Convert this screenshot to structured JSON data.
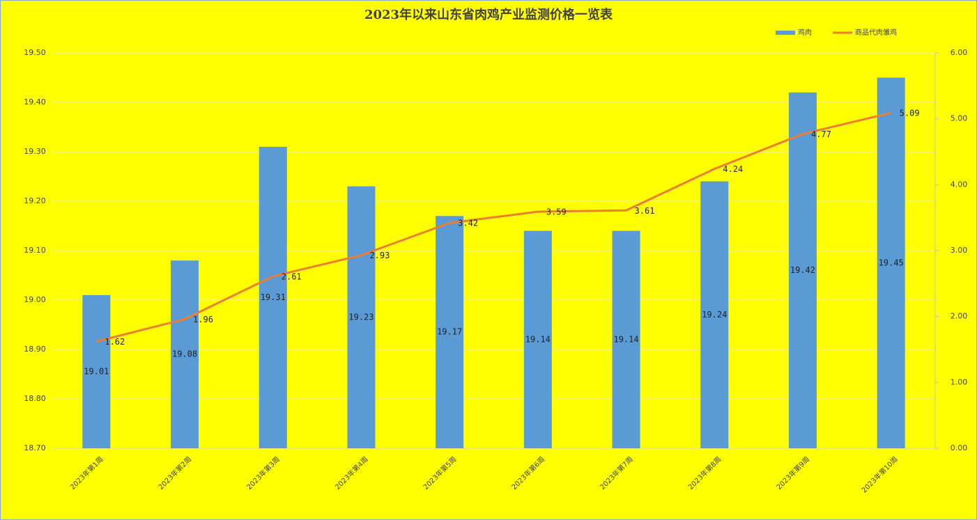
{
  "chart_data": {
    "type": "combo",
    "title": "2023年以来山东省肉鸡产业监测价格一览表",
    "categories": [
      "2023年第1周",
      "2023年第2周",
      "2023年第3周",
      "2023年第4周",
      "2023年第5周",
      "2023年第6周",
      "2023年第7周",
      "2023年第8周",
      "2023年第9周",
      "2023年第10周"
    ],
    "series": [
      {
        "name": "鸡肉",
        "type": "bar",
        "color": "#5b9bd5",
        "values": [
          19.01,
          19.08,
          19.31,
          19.23,
          19.17,
          19.14,
          19.14,
          19.24,
          19.42,
          19.45
        ]
      },
      {
        "name": "商品代肉雏鸡",
        "type": "line",
        "axis": "y2",
        "color": "#ed7d31",
        "values": [
          1.62,
          1.96,
          2.61,
          2.93,
          3.42,
          3.59,
          3.61,
          4.24,
          4.77,
          5.09
        ]
      }
    ],
    "ylim": [
      18.7,
      19.5
    ],
    "yticks": [
      {
        "value": 18.7,
        "label": "18.70"
      },
      {
        "value": 18.8,
        "label": "18.80"
      },
      {
        "value": 18.9,
        "label": "18.90"
      },
      {
        "value": 19.0,
        "label": "19.00"
      },
      {
        "value": 19.1,
        "label": "19.10"
      },
      {
        "value": 19.2,
        "label": "19.20"
      },
      {
        "value": 19.3,
        "label": "19.30"
      },
      {
        "value": 19.4,
        "label": "19.40"
      },
      {
        "value": 19.5,
        "label": "19.50"
      }
    ],
    "y2lim": [
      0,
      6
    ],
    "y2ticks": [
      {
        "value": 0,
        "label": "0.00"
      },
      {
        "value": 1,
        "label": "1.00"
      },
      {
        "value": 2,
        "label": "2.00"
      },
      {
        "value": 3,
        "label": "3.00"
      },
      {
        "value": 4,
        "label": "4.00"
      },
      {
        "value": 5,
        "label": "5.00"
      },
      {
        "value": 6,
        "label": "6.00"
      }
    ],
    "grid": true,
    "legend": "top-right",
    "background": "#ffff00"
  }
}
